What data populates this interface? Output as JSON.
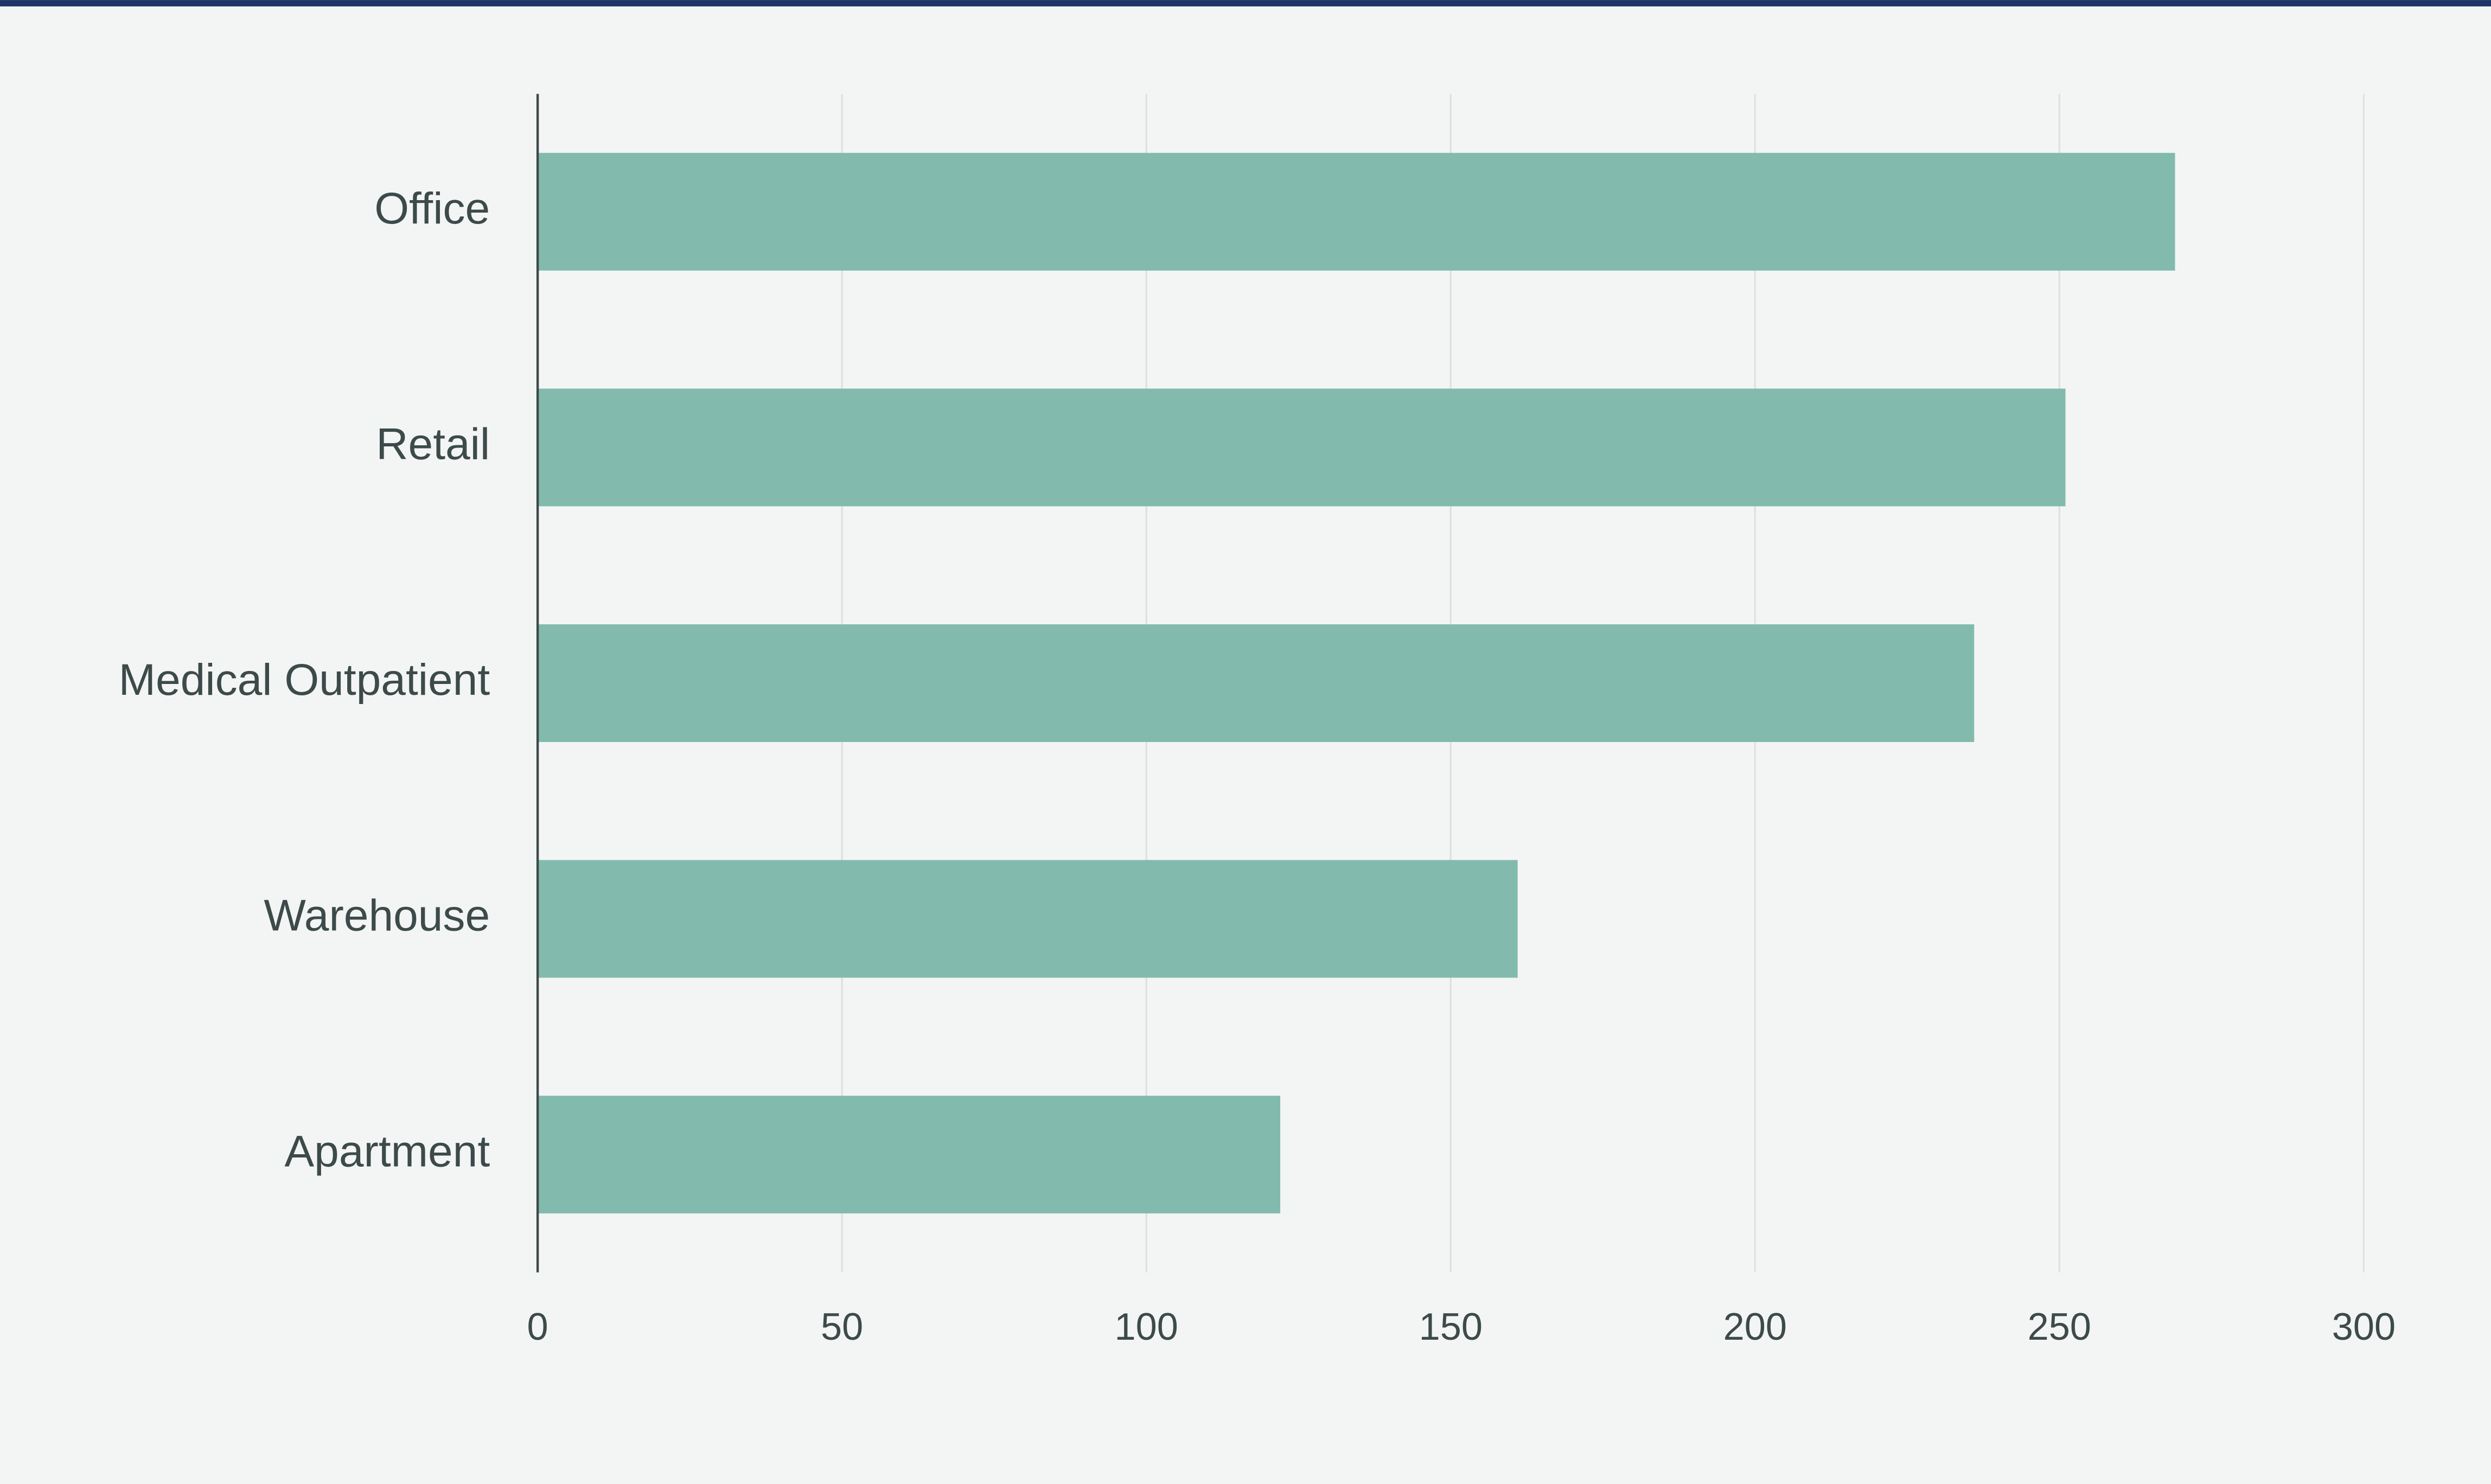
{
  "chart_data": {
    "type": "bar",
    "orientation": "horizontal",
    "categories": [
      "Office",
      "Retail",
      "Medical Outpatient",
      "Warehouse",
      "Apartment"
    ],
    "values": [
      269,
      251,
      236,
      161,
      122
    ],
    "color": "#82bbad",
    "xlim": [
      0,
      300
    ],
    "xticks": [
      0,
      50,
      100,
      150,
      200,
      250,
      300
    ],
    "grid": true
  }
}
